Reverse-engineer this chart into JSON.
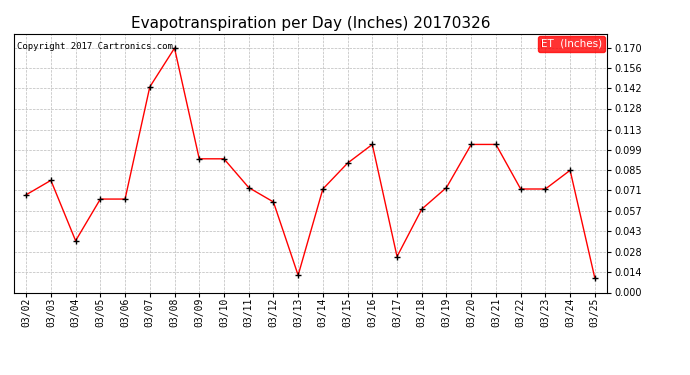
{
  "title": "Evapotranspiration per Day (Inches) 20170326",
  "copyright_text": "Copyright 2017 Cartronics.com",
  "legend_label": "ET  (Inches)",
  "legend_bg": "#ff0000",
  "legend_fg": "#ffffff",
  "x_labels": [
    "03/02",
    "03/03",
    "03/04",
    "03/05",
    "03/06",
    "03/07",
    "03/08",
    "03/09",
    "03/10",
    "03/11",
    "03/12",
    "03/13",
    "03/14",
    "03/15",
    "03/16",
    "03/17",
    "03/18",
    "03/19",
    "03/20",
    "03/21",
    "03/22",
    "03/23",
    "03/24",
    "03/25"
  ],
  "y_values": [
    0.068,
    0.078,
    0.036,
    0.065,
    0.065,
    0.143,
    0.17,
    0.093,
    0.093,
    0.073,
    0.063,
    0.012,
    0.072,
    0.09,
    0.103,
    0.025,
    0.058,
    0.073,
    0.103,
    0.103,
    0.072,
    0.072,
    0.085,
    0.01
  ],
  "line_color": "#ff0000",
  "marker_color": "#000000",
  "ylim": [
    0.0,
    0.18
  ],
  "yticks": [
    0.0,
    0.014,
    0.028,
    0.043,
    0.057,
    0.071,
    0.085,
    0.099,
    0.113,
    0.128,
    0.142,
    0.156,
    0.17
  ],
  "bg_color": "#ffffff",
  "grid_color": "#bbbbbb",
  "title_fontsize": 11,
  "tick_fontsize": 7,
  "copyright_fontsize": 6.5,
  "legend_fontsize": 7.5,
  "fig_width": 6.9,
  "fig_height": 3.75,
  "dpi": 100
}
